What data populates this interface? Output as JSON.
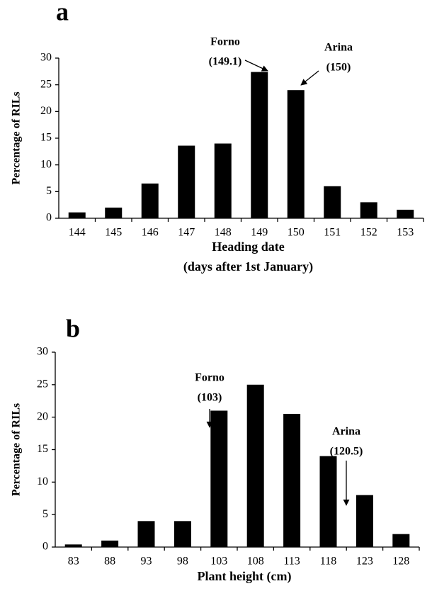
{
  "chart_data": [
    {
      "type": "bar",
      "panel": "a",
      "ylabel": "Percentage of RILs",
      "xlabel": [
        "Heading date",
        "(days after 1st January)"
      ],
      "categories": [
        "144",
        "145",
        "146",
        "147",
        "148",
        "149",
        "150",
        "151",
        "152",
        "153"
      ],
      "values": [
        1.1,
        2,
        6.5,
        13.6,
        14,
        27.4,
        24,
        6,
        3,
        1.6
      ],
      "color": "#000000",
      "ylim": [
        0,
        30
      ],
      "yticks": [
        0,
        5,
        10,
        15,
        20,
        25,
        30
      ],
      "annotations": [
        {
          "lines": [
            "Forno",
            "(149.1)"
          ]
        },
        {
          "lines": [
            "Arina",
            "(150)"
          ]
        }
      ]
    },
    {
      "type": "bar",
      "panel": "b",
      "ylabel": "Percentage of RILs",
      "xlabel": [
        "Plant height (cm)"
      ],
      "categories": [
        "83",
        "88",
        "93",
        "98",
        "103",
        "108",
        "113",
        "118",
        "123",
        "128"
      ],
      "values": [
        0.4,
        1,
        4,
        4,
        21,
        25,
        20.5,
        14,
        8,
        2
      ],
      "color": "#000000",
      "ylim": [
        0,
        30
      ],
      "yticks": [
        0,
        5,
        10,
        15,
        20,
        25,
        30
      ],
      "annotations": [
        {
          "lines": [
            "Forno",
            "(103)"
          ]
        },
        {
          "lines": [
            "Arina",
            "(120.5)"
          ]
        }
      ]
    }
  ]
}
